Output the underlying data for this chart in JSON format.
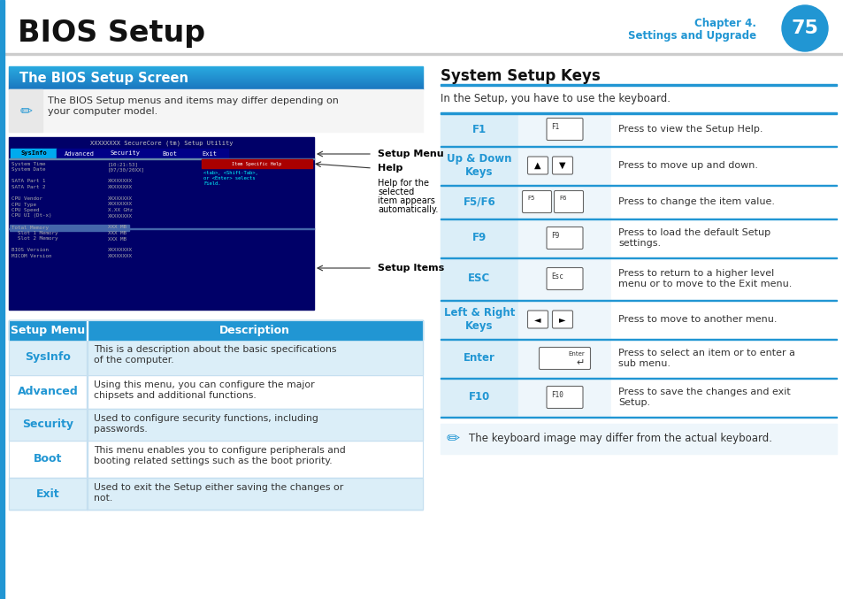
{
  "title": "BIOS Setup",
  "chapter": "Chapter 4.",
  "chapter_sub": "Settings and Upgrade",
  "chapter_num": "75",
  "section1_title": "The BIOS Setup Screen",
  "note1": "The BIOS Setup menus and items may differ depending on\nyour computer model.",
  "section2_title": "System Setup Keys",
  "section2_intro": "In the Setup, you have to use the keyboard.",
  "table1_headers": [
    "Setup Menu",
    "Description"
  ],
  "table1_rows": [
    [
      "SysInfo",
      "This is a description about the basic specifications\nof the computer."
    ],
    [
      "Advanced",
      "Using this menu, you can configure the major\nchipsets and additional functions."
    ],
    [
      "Security",
      "Used to configure security functions, including\npasswords."
    ],
    [
      "Boot",
      "This menu enables you to configure peripherals and\nbooting related settings such as the boot priority."
    ],
    [
      "Exit",
      "Used to exit the Setup either saving the changes or\nnot."
    ]
  ],
  "keys_table": [
    [
      "F1",
      "F1",
      "Press to view the Setup Help."
    ],
    [
      "Up & Down\nKeys",
      "up_down",
      "Press to move up and down."
    ],
    [
      "F5/F6",
      "f5f6",
      "Press to change the item value."
    ],
    [
      "F9",
      "F9",
      "Press to load the default Setup\nsettings."
    ],
    [
      "ESC",
      "Esc",
      "Press to return to a higher level\nmenu or to move to the Exit menu."
    ],
    [
      "Left & Right\nKeys",
      "left_right",
      "Press to move to another menu."
    ],
    [
      "Enter",
      "enter",
      "Press to select an item or to enter a\nsub menu."
    ],
    [
      "F10",
      "F10",
      "Press to save the changes and exit\nSetup."
    ]
  ],
  "note2": "The keyboard image may differ from the actual keyboard.",
  "blue": "#2196d3",
  "blue_light": "#dbeef8",
  "blue_lighter": "#eef6fb",
  "white": "#ffffff",
  "dark": "#1a1a1a",
  "text_gray": "#333333",
  "line_gray": "#aaaaaa"
}
